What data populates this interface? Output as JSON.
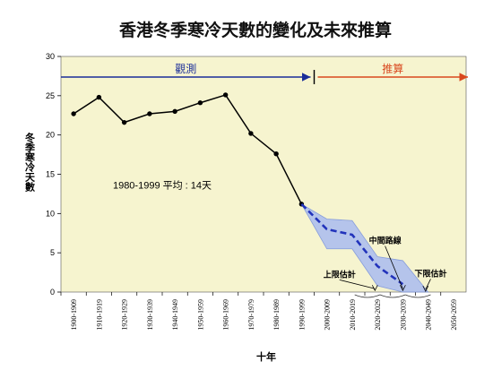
{
  "chart_data": {
    "type": "line",
    "title": "香港冬季寒冷天數的變化及未來推算",
    "xlabel": "十年",
    "ylabel": "冬季寒冷天數",
    "ylim": [
      0,
      30
    ],
    "yticks": [
      0,
      5,
      10,
      15,
      20,
      25,
      30
    ],
    "grid": false,
    "categories": [
      "1900-1909",
      "1910-1919",
      "1920-1929",
      "1930-1939",
      "1940-1949",
      "1950-1959",
      "1960-1969",
      "1970-1979",
      "1980-1989",
      "1990-1999",
      "2000-2009",
      "2010-2019",
      "2020-2029",
      "2030-2039",
      "2040-2049",
      "2050-2059"
    ],
    "series": [
      {
        "name": "觀測",
        "style": "solid",
        "color": "#000000",
        "values": [
          22.7,
          24.8,
          21.6,
          22.7,
          23.0,
          24.1,
          25.1,
          20.2,
          17.6,
          11.2,
          null,
          null,
          null,
          null,
          null,
          null
        ]
      },
      {
        "name": "中間路線",
        "style": "dashed",
        "color": "#2233bb",
        "values": [
          null,
          null,
          null,
          null,
          null,
          null,
          null,
          null,
          null,
          11.2,
          8.0,
          7.3,
          3.3,
          1.0,
          null,
          null
        ]
      },
      {
        "name": "上限估計",
        "style": "band-upper",
        "color": "#6688dd",
        "values": [
          null,
          null,
          null,
          null,
          null,
          null,
          null,
          null,
          null,
          11.2,
          9.3,
          9.1,
          4.5,
          4.0,
          0.0,
          null
        ]
      },
      {
        "name": "下限估計",
        "style": "band-lower",
        "color": "#6688dd",
        "values": [
          null,
          null,
          null,
          null,
          null,
          null,
          null,
          null,
          null,
          11.2,
          5.5,
          5.5,
          0.8,
          0.0,
          0.0,
          null
        ]
      }
    ],
    "phases": [
      {
        "label": "觀測",
        "from": 0,
        "to": 9.5,
        "color": "#1a2d99"
      },
      {
        "label": "推算",
        "from": 9.5,
        "to": 15.5,
        "color": "#d9481f"
      }
    ],
    "annotations": [
      {
        "text": "1980-1999 平均 : 14天",
        "x": 3.5,
        "y": 13.2
      },
      {
        "text": "中間路線",
        "x": 12.3,
        "y": 6.2,
        "target_x": 13.0,
        "target_y": 0.2
      },
      {
        "text": "上限估計",
        "x": 10.5,
        "y": 1.9,
        "target_x": 11.9,
        "target_y": 0.2
      },
      {
        "text": "下限估計",
        "x": 14.1,
        "y": 2.0,
        "target_x": 13.9,
        "target_y": 0.1
      }
    ],
    "colors": {
      "plot_bg": "#f6f4cf",
      "band_fill": "#aebfef",
      "band_stroke": "#7a93dc",
      "observed_line": "#000000",
      "projection_line": "#2233bb"
    }
  }
}
